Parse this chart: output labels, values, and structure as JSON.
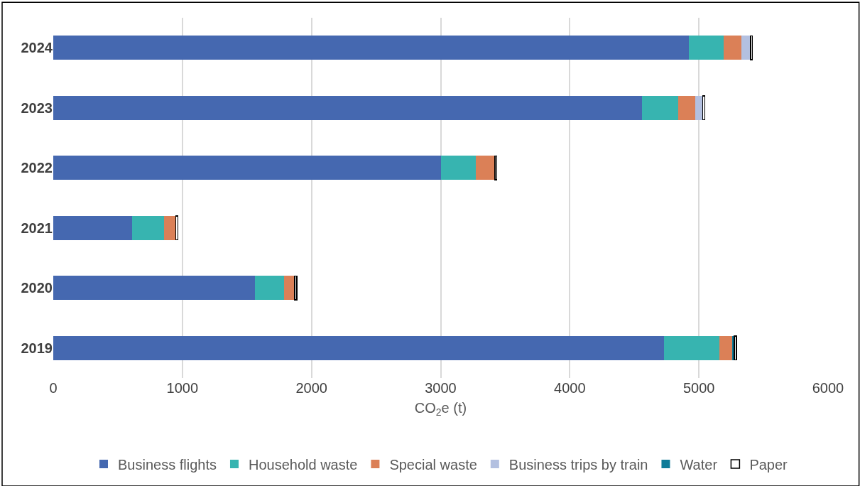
{
  "chart_data": {
    "type": "bar",
    "orientation": "horizontal",
    "stacked": true,
    "xlabel": "CO$_{2}$e (t)",
    "categories": [
      "2024",
      "2023",
      "2022",
      "2021",
      "2020",
      "2019"
    ],
    "series": [
      {
        "name": "Business flights",
        "color": "#4568b0",
        "values": [
          4920,
          4560,
          3000,
          610,
          1560,
          4730
        ]
      },
      {
        "name": "Household waste",
        "color": "#37b4b0",
        "values": [
          270,
          280,
          270,
          250,
          230,
          430
        ]
      },
      {
        "name": "Special waste",
        "color": "#db8057",
        "values": [
          140,
          130,
          150,
          90,
          80,
          100
        ]
      },
      {
        "name": "Business trips by train",
        "color": "#b3c0e0",
        "values": [
          70,
          60,
          0,
          0,
          0,
          null
        ]
      },
      {
        "name": "Water",
        "color": "#0f7c99",
        "values": [
          null,
          null,
          null,
          null,
          null,
          15
        ]
      },
      {
        "name": "Paper",
        "color": "#ffffff",
        "values": [
          15,
          15,
          15,
          15,
          15,
          15
        ]
      }
    ],
    "xlim": [
      0,
      6000
    ],
    "xticks": [
      0,
      1000,
      2000,
      3000,
      4000,
      5000,
      6000
    ],
    "grid": "x",
    "legend": "bottom"
  }
}
